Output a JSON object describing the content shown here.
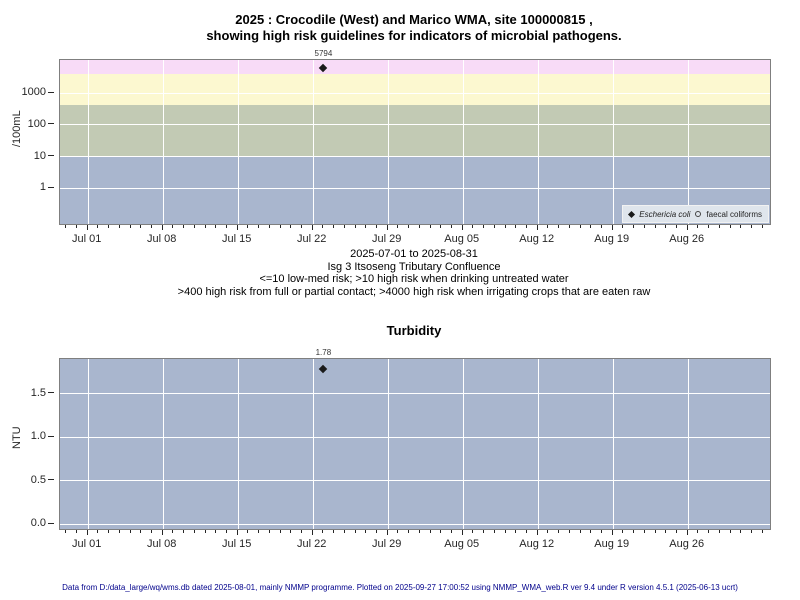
{
  "title": {
    "line1": "2025 : Crocodile (West) and Marico WMA, site 100000815 ,",
    "line2": "showing high risk guidelines for indicators of microbial pathogens."
  },
  "caption": {
    "line1": "2025-07-01 to 2025-08-31",
    "line2": "Isg 3 Itsoseng Tributary Confluence",
    "line3": "<=10 low-med risk; >10 high risk when drinking untreated water",
    "line4": ">400 high risk from full or partial contact; >4000 high risk when irrigating crops that are eaten raw"
  },
  "footer": "Data from D:/data_large/wq/wms.db dated 2025-08-01, mainly NMMP programme. Plotted on 2025-09-27 17:00:52 using NMMP_WMA_web.R ver 9.4 under R version 4.5.1 (2025-06-13 ucrt)",
  "chart_data": [
    {
      "name": "microbial-pathogens",
      "type": "scatter",
      "yscale": "log",
      "ylabel": "/100mL",
      "ytick_labels": [
        "1000",
        "100",
        "10",
        "1"
      ],
      "ytick_values": [
        1000,
        100,
        10,
        1
      ],
      "xtick_labels": [
        "Jul 01",
        "Jul 08",
        "Jul 15",
        "Jul 22",
        "Jul 29",
        "Aug 05",
        "Aug 12",
        "Aug 19",
        "Aug 26"
      ],
      "x_range": [
        "2025-07-01",
        "2025-08-31"
      ],
      "grid": true,
      "legend_position": "bottom-right",
      "legend": [
        {
          "label": "Eschericia coli",
          "marker": "filled-diamond"
        },
        {
          "label": "faecal coliforms",
          "marker": "open-circle"
        }
      ],
      "risk_bands": [
        {
          "range": ">4000",
          "meaning": "high risk when irrigating crops that are eaten raw",
          "color": "#f8dbf7"
        },
        {
          "range": "400-4000",
          "meaning": "high risk from full or partial contact",
          "color": "#fcf8d0"
        },
        {
          "range": "10-400",
          "meaning": "high risk when drinking untreated water",
          "color": "#c2cab4"
        },
        {
          "range": "<=10",
          "meaning": "low-med risk",
          "color": "#a9b6ce"
        }
      ],
      "series": [
        {
          "name": "Eschericia coli",
          "points": [
            {
              "date": "2025-07-23",
              "value": 5794
            }
          ]
        },
        {
          "name": "faecal coliforms",
          "points": []
        }
      ],
      "point_label": "5794"
    },
    {
      "name": "turbidity",
      "type": "scatter",
      "title": "Turbidity",
      "ylabel": "NTU",
      "plot_bg": "#a9b6ce",
      "ytick_labels": [
        "1.5",
        "1.0",
        "0.5",
        "0.0"
      ],
      "ytick_values": [
        1.5,
        1.0,
        0.5,
        0.0
      ],
      "xtick_labels": [
        "Jul 01",
        "Jul 08",
        "Jul 15",
        "Jul 22",
        "Jul 29",
        "Aug 05",
        "Aug 12",
        "Aug 19",
        "Aug 26"
      ],
      "x_range": [
        "2025-07-01",
        "2025-08-31"
      ],
      "grid": true,
      "series": [
        {
          "name": "Turbidity",
          "points": [
            {
              "date": "2025-07-23",
              "value": 1.78
            }
          ]
        }
      ],
      "point_label": "1.78"
    }
  ]
}
